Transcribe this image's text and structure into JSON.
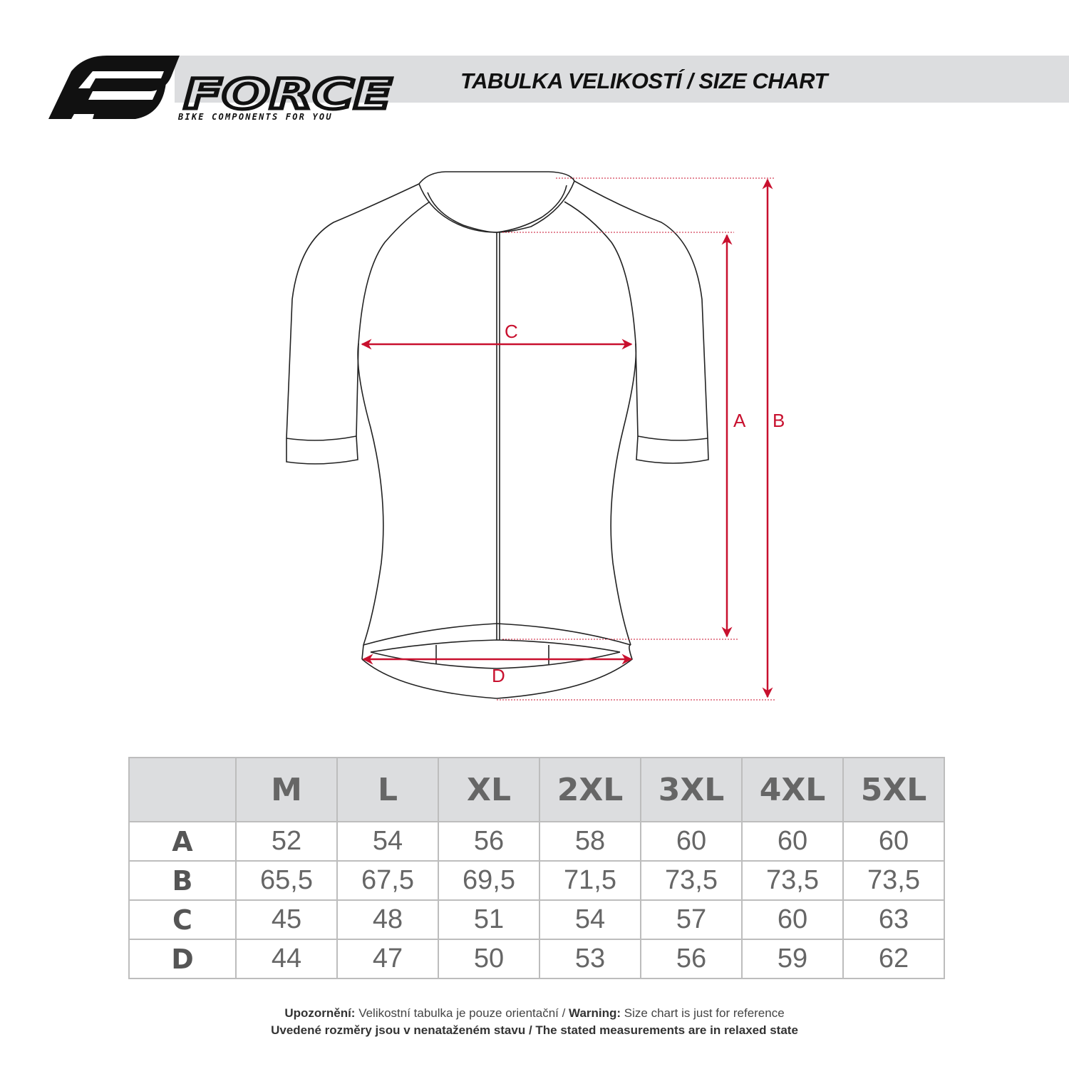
{
  "brand": {
    "name": "FORCE",
    "tagline": "BIKE COMPONENTS FOR YOU"
  },
  "header": {
    "title": "TABULKA VELIKOSTÍ / SIZE CHART"
  },
  "diagram": {
    "labels": {
      "a": "A",
      "b": "B",
      "c": "C",
      "d": "D"
    },
    "arrow_color": "#c8102e"
  },
  "table": {
    "columns": [
      "M",
      "L",
      "XL",
      "2XL",
      "3XL",
      "4XL",
      "5XL"
    ],
    "rows": [
      {
        "label": "A",
        "values": [
          "52",
          "54",
          "56",
          "58",
          "60",
          "60",
          "60"
        ]
      },
      {
        "label": "B",
        "values": [
          "65,5",
          "67,5",
          "69,5",
          "71,5",
          "73,5",
          "73,5",
          "73,5"
        ]
      },
      {
        "label": "C",
        "values": [
          "45",
          "48",
          "51",
          "54",
          "57",
          "60",
          "63"
        ]
      },
      {
        "label": "D",
        "values": [
          "44",
          "47",
          "50",
          "53",
          "56",
          "59",
          "62"
        ]
      }
    ]
  },
  "footer": {
    "warning_cz_label": "Upozornění:",
    "warning_cz_text": " Velikostní tabulka je pouze orientační / ",
    "warning_en_label": "Warning:",
    "warning_en_text": " Size chart is just for reference",
    "line2": "Uvedené rozměry jsou v nenataženém stavu / The stated measurements are in relaxed state"
  }
}
